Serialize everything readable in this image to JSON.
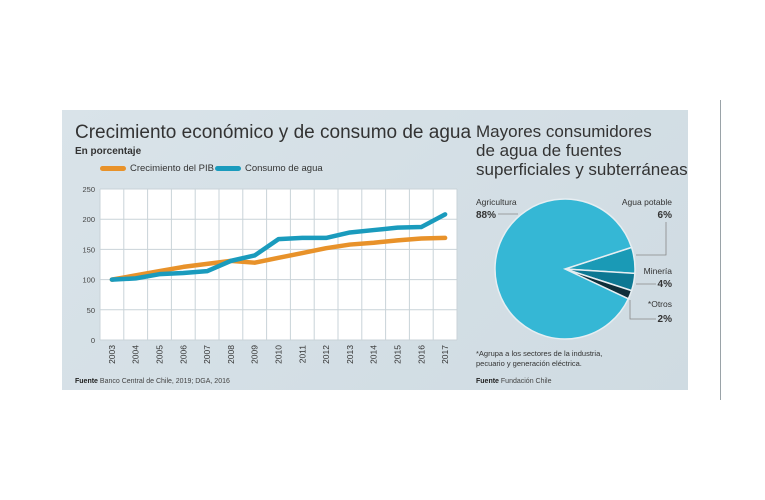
{
  "chart_data": [
    {
      "type": "line",
      "title": "Crecimiento económico y de consumo de agua",
      "subtitle": "En porcentaje",
      "categories": [
        "2003",
        "2004",
        "2005",
        "2006",
        "2007",
        "2008",
        "2009",
        "2010",
        "2011",
        "2012",
        "2013",
        "2014",
        "2015",
        "2016",
        "2017"
      ],
      "yticks": [
        "0",
        "50",
        "100",
        "150",
        "200",
        "250"
      ],
      "ylim": [
        0,
        250
      ],
      "grid": true,
      "legend": "top",
      "series": [
        {
          "name": "Crecimiento del PIB",
          "color": "#e8922a",
          "values": [
            100,
            107,
            114,
            121,
            126,
            131,
            128,
            136,
            144,
            152,
            158,
            161,
            165,
            168,
            169
          ]
        },
        {
          "name": "Consumo de agua",
          "color": "#1a9bbd",
          "values": [
            100,
            102,
            109,
            111,
            114,
            131,
            140,
            167,
            169,
            169,
            178,
            182,
            186,
            187,
            208
          ]
        }
      ],
      "source_label": "Fuente",
      "source": "Banco Central de Chile, 2019; DGA, 2016"
    },
    {
      "type": "pie",
      "title_lines": [
        "Mayores consumidores",
        "de agua de fuentes",
        "superficiales y subterráneas"
      ],
      "slices": [
        {
          "label": "Agricultura",
          "value": 88,
          "pct": "88%",
          "color": "#35b7d5"
        },
        {
          "label": "Agua potable",
          "value": 6,
          "pct": "6%",
          "color": "#1a9ab6"
        },
        {
          "label": "Minería",
          "value": 4,
          "pct": "4%",
          "color": "#0d7893"
        },
        {
          "label": "*Otros",
          "value": 2,
          "pct": "2%",
          "color": "#0f2f3a"
        }
      ],
      "note": "*Agrupa a los sectores de la industria, pecuario y generación eléctrica.",
      "source_label": "Fuente",
      "source": "Fundación Chile"
    }
  ]
}
